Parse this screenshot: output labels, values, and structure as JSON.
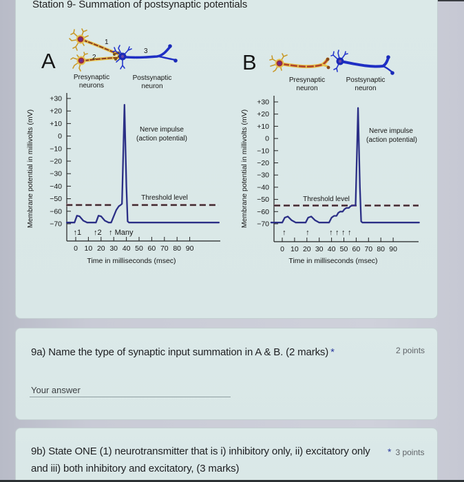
{
  "page": {
    "title": "Station 9- Summation of postsynaptic potentials"
  },
  "figure": {
    "panel_a": {
      "letter": "A",
      "neuron_numbers": [
        "1",
        "2",
        "3"
      ],
      "presynaptic_label_line1": "Presynaptic",
      "presynaptic_label_line2": "neurons",
      "postsynaptic_label_line1": "Postsynaptic",
      "postsynaptic_label_line2": "neuron"
    },
    "panel_b": {
      "letter": "B",
      "presynaptic_label_line1": "Presynaptic",
      "presynaptic_label_line2": "neuron",
      "postsynaptic_label_line1": "Postsynaptic",
      "postsynaptic_label_line2": "neuron"
    },
    "colors": {
      "trace": "#2b2f86",
      "threshold": "#2d2428",
      "presynaptic": "#e2b648",
      "postsynaptic": "#1f2fc4"
    }
  },
  "chart_data": [
    {
      "panel": "A",
      "type": "line",
      "title": "",
      "xlabel": "Time in milliseconds (msec)",
      "ylabel": "Membrane potential in millivolts (mV)",
      "xlim": [
        -7,
        113
      ],
      "ylim": [
        -70,
        30
      ],
      "grid": false,
      "xticks": [
        {
          "value": 0,
          "label": "0"
        },
        {
          "value": 10,
          "label": "10"
        },
        {
          "value": 20,
          "label": "20"
        },
        {
          "value": 30,
          "label": "30"
        },
        {
          "value": 40,
          "label": "40"
        },
        {
          "value": 50,
          "label": "50"
        },
        {
          "value": 60,
          "label": "60"
        },
        {
          "value": 70,
          "label": "70"
        },
        {
          "value": 80,
          "label": "80"
        },
        {
          "value": 90,
          "label": "90"
        }
      ],
      "yticks": [
        {
          "value": 30,
          "label": "+30"
        },
        {
          "value": 20,
          "label": "+20"
        },
        {
          "value": 10,
          "label": "+10"
        },
        {
          "value": 0,
          "label": "0"
        },
        {
          "value": -10,
          "label": "−10"
        },
        {
          "value": -20,
          "label": "−20"
        },
        {
          "value": -30,
          "label": "−30"
        },
        {
          "value": -40,
          "label": "−40"
        },
        {
          "value": -50,
          "label": "−50"
        },
        {
          "value": -60,
          "label": "−60"
        },
        {
          "value": -70,
          "label": "−70"
        }
      ],
      "series": [
        {
          "name": "Membrane potential (postsynaptic)",
          "points": [
            [
              -7,
              -69
            ],
            [
              -1,
              -69
            ],
            [
              1,
              -63.5
            ],
            [
              3,
              -64
            ],
            [
              6,
              -67.5
            ],
            [
              9,
              -69
            ],
            [
              16,
              -69
            ],
            [
              18,
              -63.5
            ],
            [
              20,
              -64
            ],
            [
              23,
              -67.5
            ],
            [
              26,
              -69
            ],
            [
              28,
              -69
            ],
            [
              30,
              -64
            ],
            [
              32,
              -59
            ],
            [
              34,
              -56
            ],
            [
              35.5,
              -55
            ],
            [
              36.5,
              -54
            ],
            [
              38.5,
              25
            ],
            [
              40,
              -40
            ],
            [
              41,
              -68
            ],
            [
              42,
              -69
            ],
            [
              113,
              -69
            ]
          ]
        }
      ],
      "threshold": {
        "label": "Threshold level",
        "value": -55,
        "segments": [
          [
            -7.5,
            30
          ],
          [
            44.5,
            113
          ]
        ]
      },
      "annotations": [
        "Nerve impulse",
        "(action potential)"
      ],
      "stimuli": [
        {
          "t": 0,
          "label": "1"
        },
        {
          "t": 16,
          "label": "2"
        },
        {
          "t": 28,
          "label": " Many"
        }
      ],
      "stimulus_icon": "↑"
    },
    {
      "panel": "B",
      "type": "line",
      "title": "",
      "xlabel": "Time in milliseconds (msec)",
      "ylabel": "Membrane potential in millivolts (mV)",
      "xlim": [
        -9,
        111
      ],
      "ylim": [
        -70,
        30
      ],
      "grid": false,
      "xticks": [
        {
          "value": 0,
          "label": "0"
        },
        {
          "value": 10,
          "label": "10"
        },
        {
          "value": 20,
          "label": "20"
        },
        {
          "value": 30,
          "label": "30"
        },
        {
          "value": 40,
          "label": "40"
        },
        {
          "value": 50,
          "label": "50"
        },
        {
          "value": 60,
          "label": "60"
        },
        {
          "value": 70,
          "label": "70"
        },
        {
          "value": 80,
          "label": "80"
        },
        {
          "value": 90,
          "label": "90"
        }
      ],
      "yticks": [
        {
          "value": 30,
          "label": "+30"
        },
        {
          "value": 20,
          "label": "+20"
        },
        {
          "value": 10,
          "label": "+10"
        },
        {
          "value": 0,
          "label": "0"
        },
        {
          "value": -10,
          "label": "−10"
        },
        {
          "value": -20,
          "label": "−20"
        },
        {
          "value": -30,
          "label": "−30"
        },
        {
          "value": -40,
          "label": "−40"
        },
        {
          "value": -50,
          "label": "−50"
        },
        {
          "value": -60,
          "label": "−60"
        },
        {
          "value": -70,
          "label": "−70"
        }
      ],
      "series": [
        {
          "name": "Membrane potential (postsynaptic)",
          "points": [
            [
              -9,
              -69
            ],
            [
              0,
              -69
            ],
            [
              2,
              -65
            ],
            [
              4.5,
              -64
            ],
            [
              7.5,
              -67
            ],
            [
              11,
              -69
            ],
            [
              19,
              -69
            ],
            [
              21,
              -65
            ],
            [
              23.5,
              -64
            ],
            [
              26.5,
              -67
            ],
            [
              30,
              -69
            ],
            [
              38,
              -69
            ],
            [
              40,
              -65
            ],
            [
              42,
              -63.5
            ],
            [
              44,
              -63.5
            ],
            [
              45.5,
              -61
            ],
            [
              47,
              -60
            ],
            [
              49,
              -60
            ],
            [
              50.5,
              -58
            ],
            [
              52,
              -57
            ],
            [
              54,
              -57
            ],
            [
              55.5,
              -55.5
            ],
            [
              57,
              -55
            ],
            [
              59.5,
              -55
            ],
            [
              61.5,
              25
            ],
            [
              63,
              -40
            ],
            [
              64,
              -68
            ],
            [
              65,
              -69
            ],
            [
              111,
              -69
            ]
          ]
        }
      ],
      "threshold": {
        "label": "Threshold level",
        "value": -55,
        "segments": [
          [
            -6.7,
            60.3
          ],
          [
            67,
            110.6
          ]
        ]
      },
      "annotations": [
        "Nerve impulse",
        "(action potential)"
      ],
      "stimuli": [
        {
          "t": 2,
          "label": ""
        },
        {
          "t": 21,
          "label": ""
        },
        {
          "t": 40,
          "label": ""
        },
        {
          "t": 45,
          "label": ""
        },
        {
          "t": 50,
          "label": ""
        },
        {
          "t": 55,
          "label": ""
        }
      ],
      "stimulus_icon": "↑"
    }
  ],
  "questions": [
    {
      "id": "9a",
      "text": "9a) Name the type of synaptic input summation in A & B. (2 marks)",
      "required_marker": "*",
      "points": "2 points",
      "answer_placeholder": "Your answer",
      "answer_value": ""
    },
    {
      "id": "9b",
      "text": "9b) State ONE (1) neurotransmitter that is i) inhibitory only, ii) excitatory only and iii) both inhibitory and excitatory, (3 marks)",
      "required_marker": "*",
      "points": "3 points"
    }
  ]
}
